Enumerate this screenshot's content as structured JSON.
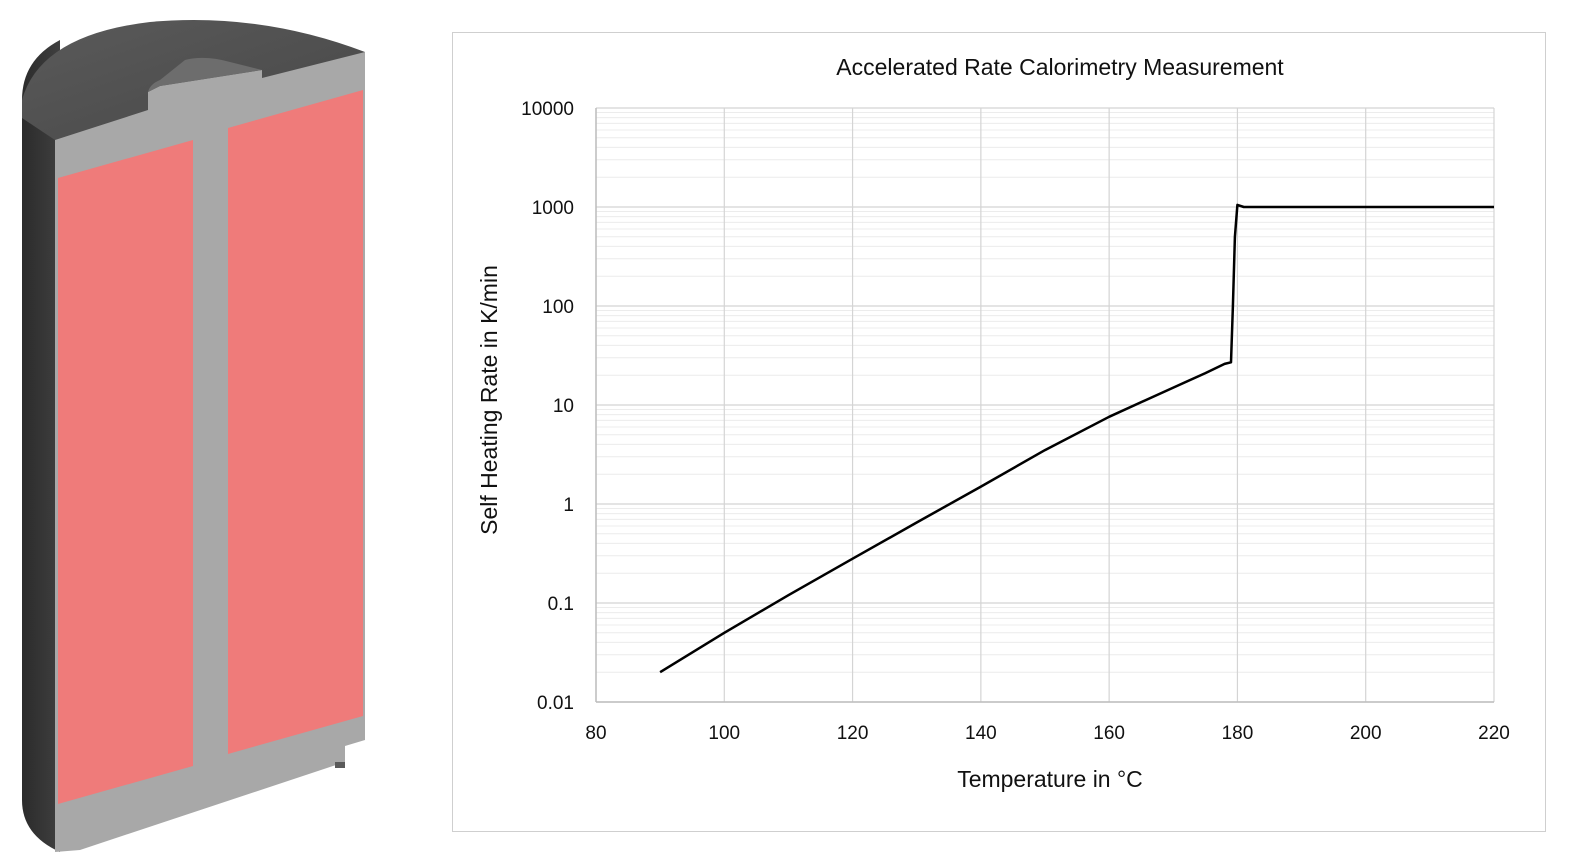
{
  "illustration": {
    "subject": "cylindrical-cell-cross-section",
    "colors": {
      "casing": "#4d4d4d",
      "casing_dark": "#2e2e2e",
      "section_face": "#a6a6a6",
      "electrode_roll": "#ef7b7a"
    }
  },
  "chart_data": {
    "type": "line",
    "title": "Accelerated Rate Calorimetry Measurement",
    "xlabel": "Temperature in °C",
    "ylabel": "Self Heating Rate in K/min",
    "xlim": [
      80,
      220
    ],
    "ylim": [
      0.01,
      10000
    ],
    "yscale": "log",
    "x_ticks": [
      "80",
      "100",
      "120",
      "140",
      "160",
      "180",
      "200",
      "220"
    ],
    "y_ticks": [
      "0.01",
      "0.1",
      "1",
      "10",
      "100",
      "1000",
      "10000"
    ],
    "grid": true,
    "minor_grid": true,
    "legend": "none",
    "line_color": "#000000",
    "series": [
      {
        "x": [
          90,
          100,
          110,
          120,
          130,
          140,
          150,
          160,
          170,
          175,
          178,
          179,
          179.3,
          179.6,
          180,
          181,
          190,
          200,
          210,
          220
        ],
        "y": [
          0.02,
          0.05,
          0.12,
          0.28,
          0.65,
          1.5,
          3.5,
          7.6,
          15,
          21,
          26,
          27,
          100,
          500,
          1050,
          1000,
          1000,
          1000,
          1000,
          1000
        ]
      }
    ]
  }
}
